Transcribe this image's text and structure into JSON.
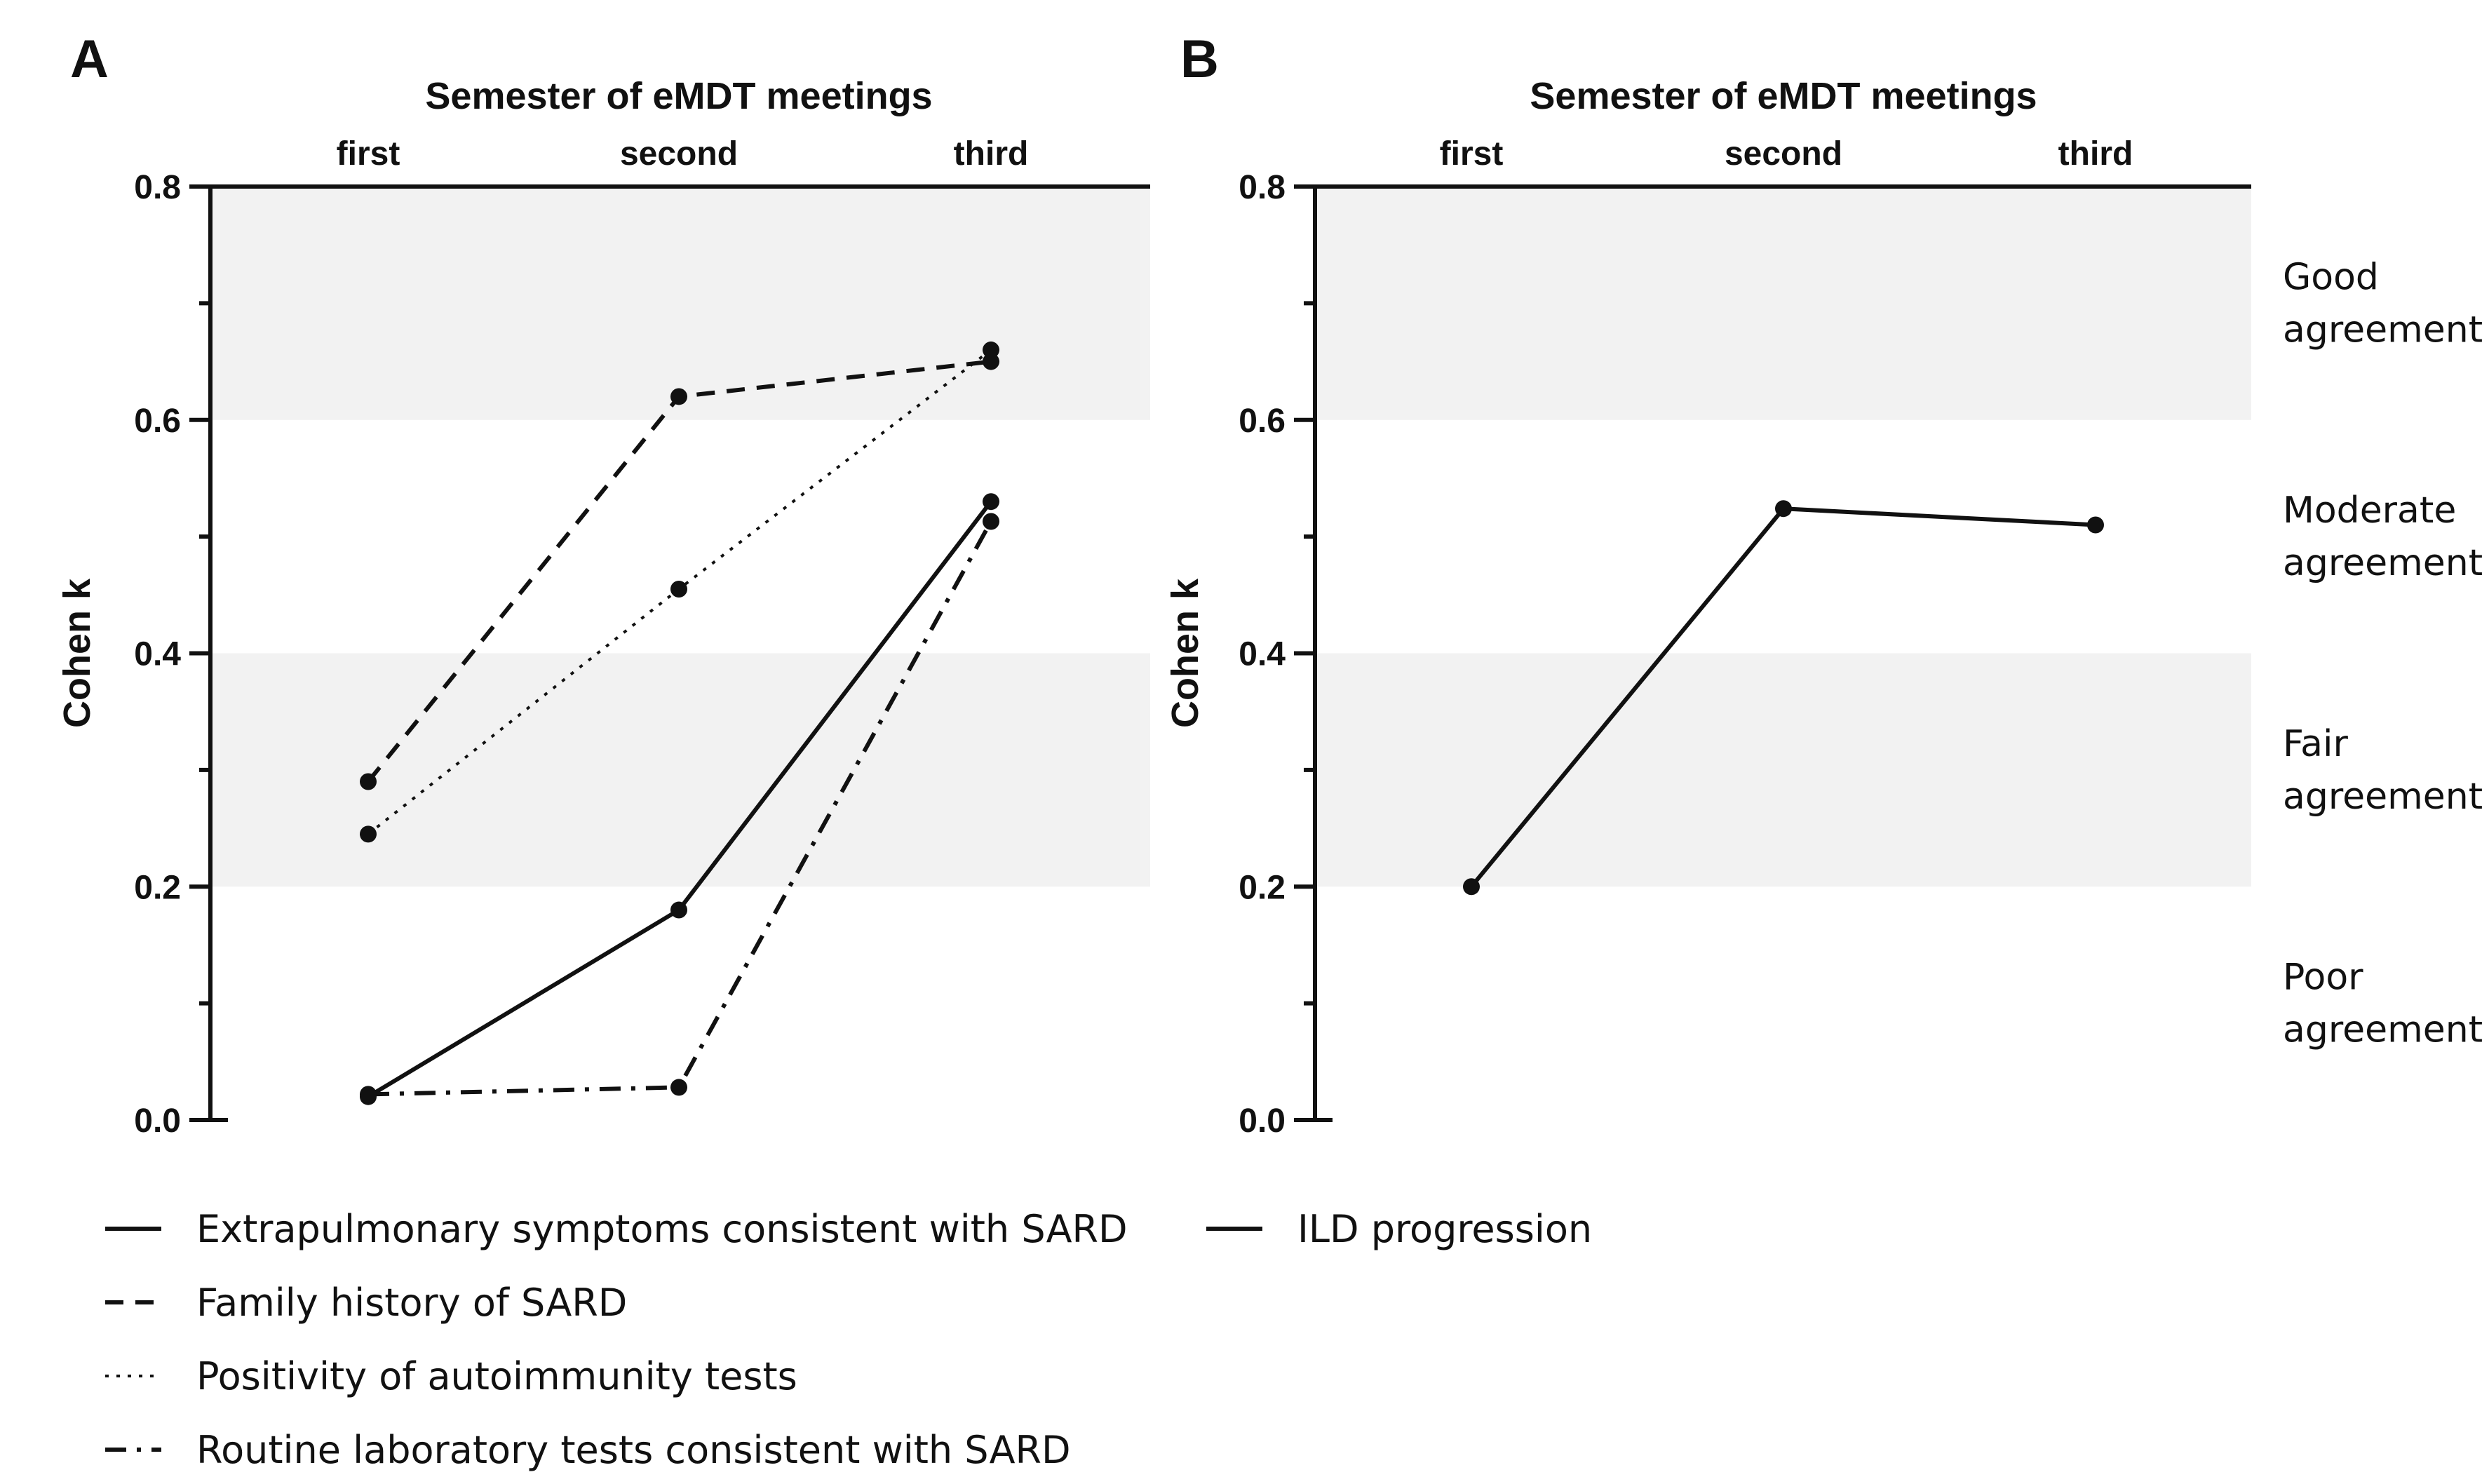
{
  "chart_data": [
    {
      "panel_label": "A",
      "type": "line",
      "title": "Semester of eMDT meetings",
      "categories": [
        "first",
        "second",
        "third"
      ],
      "ylabel": "Cohen k",
      "ylim": [
        0,
        0.8
      ],
      "yticks": [
        "0.0",
        "0.2",
        "0.4",
        "0.6",
        "0.8"
      ],
      "series": [
        {
          "name": "Extrapulmonary symptoms consistent with SARD",
          "style": "solid",
          "values": [
            0.02,
            0.18,
            0.53
          ]
        },
        {
          "name": "Family history of SARD",
          "style": "dashed",
          "values": [
            0.29,
            0.62,
            0.65
          ]
        },
        {
          "name": "Positivity of autoimmunity tests",
          "style": "dotted",
          "values": [
            0.245,
            0.455,
            0.66
          ]
        },
        {
          "name": "Routine laboratory tests consistent with SARD",
          "style": "dashdot",
          "values": [
            0.022,
            0.028,
            0.513
          ]
        }
      ]
    },
    {
      "panel_label": "B",
      "type": "line",
      "title": "Semester of eMDT meetings",
      "categories": [
        "first",
        "second",
        "third"
      ],
      "ylabel": "Cohen k",
      "ylim": [
        0,
        0.8
      ],
      "yticks": [
        "0.0",
        "0.2",
        "0.4",
        "0.6",
        "0.8"
      ],
      "series": [
        {
          "name": "ILD progression",
          "style": "solid",
          "values": [
            0.2,
            0.524,
            0.51
          ]
        }
      ]
    }
  ],
  "agreement_bands": [
    {
      "line1": "Good",
      "line2": "agreement",
      "range": [
        0.6,
        0.8
      ],
      "shaded": true
    },
    {
      "line1": "Moderate",
      "line2": "agreement",
      "range": [
        0.4,
        0.6
      ],
      "shaded": false
    },
    {
      "line1": "Fair",
      "line2": "agreement",
      "range": [
        0.2,
        0.4
      ],
      "shaded": true
    },
    {
      "line1": "Poor",
      "line2": "agreement",
      "range": [
        0.0,
        0.2
      ],
      "shaded": false
    }
  ],
  "colors": {
    "band_fill": "#f2f2f2",
    "ink": "#111111"
  }
}
